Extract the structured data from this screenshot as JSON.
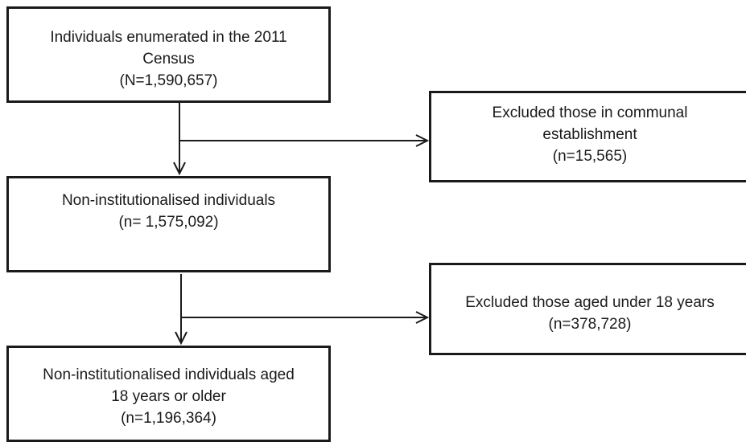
{
  "boxes": {
    "census": {
      "lines": [
        "Individuals enumerated in the 2011",
        "Census",
        "(N=1,590,657)"
      ]
    },
    "noninstitutionalised": {
      "lines": [
        "Non-institutionalised individuals",
        "(n= 1,575,092)"
      ]
    },
    "adults": {
      "lines": [
        "Non-institutionalised individuals aged",
        "18 years or older",
        "(n=1,196,364)"
      ]
    },
    "excluded_communal": {
      "lines": [
        "Excluded those in communal",
        "establishment",
        "(n=15,565)"
      ]
    },
    "excluded_under18": {
      "lines": [
        "Excluded those aged under 18 years",
        "(n=378,728)"
      ]
    }
  }
}
